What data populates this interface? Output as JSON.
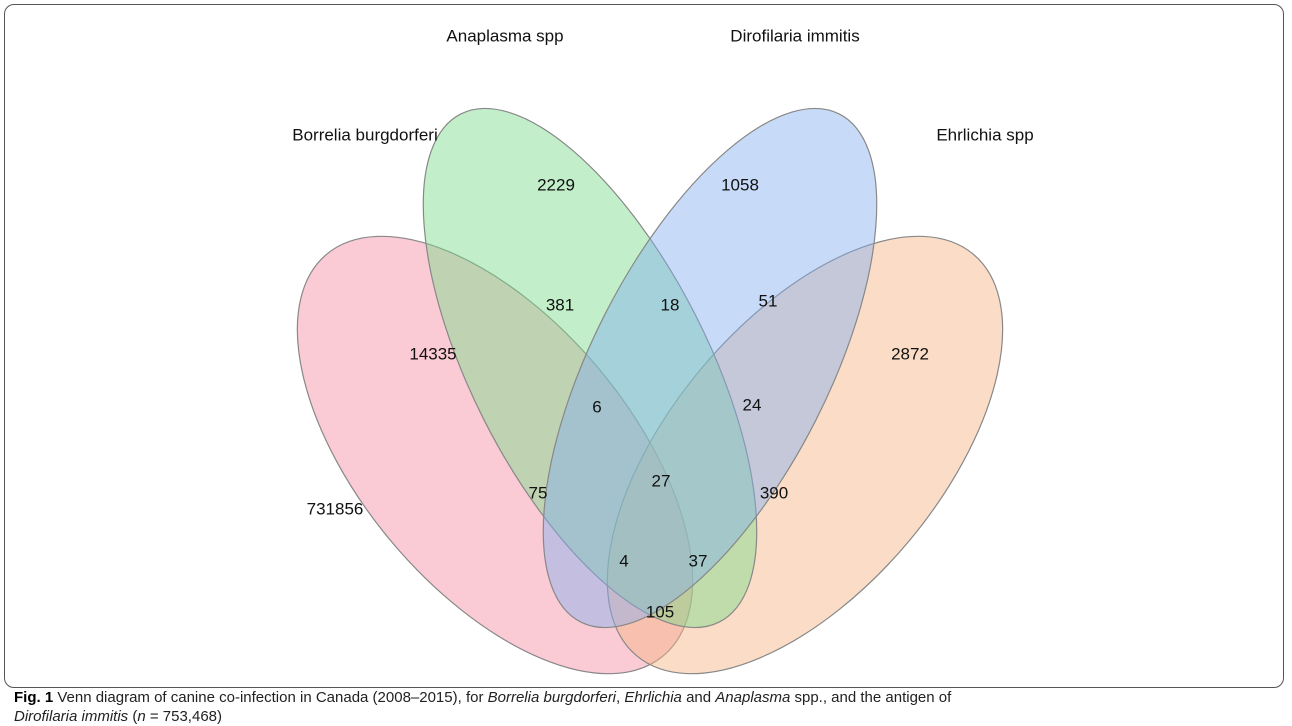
{
  "sets": [
    {
      "label": "Borrelia burgdorferi"
    },
    {
      "label": "Anaplasma spp"
    },
    {
      "label": "Dirofilaria immitis"
    },
    {
      "label": "Ehrlichia spp"
    }
  ],
  "outside": 731856,
  "regions": [
    {
      "count": 2229
    },
    {
      "count": 1058
    },
    {
      "count": 14335
    },
    {
      "count": 2872
    },
    {
      "count": 18
    },
    {
      "count": 381
    },
    {
      "count": 51
    },
    {
      "count": 6
    },
    {
      "count": 24
    },
    {
      "count": 27
    },
    {
      "count": 75
    },
    {
      "count": 390
    },
    {
      "count": 4
    },
    {
      "count": 37
    },
    {
      "count": 105
    }
  ],
  "caption": {
    "label": "Fig. 1",
    "parts": [
      " Venn diagram of canine co-infection in Canada (2008–2015), for ",
      "Borrelia burgdorferi",
      ", ",
      "Ehrlichia",
      " and ",
      "Anaplasma",
      " spp., and the antigen of ",
      "Dirofilaria immitis",
      " (",
      "n",
      " = 753,468)"
    ]
  }
}
